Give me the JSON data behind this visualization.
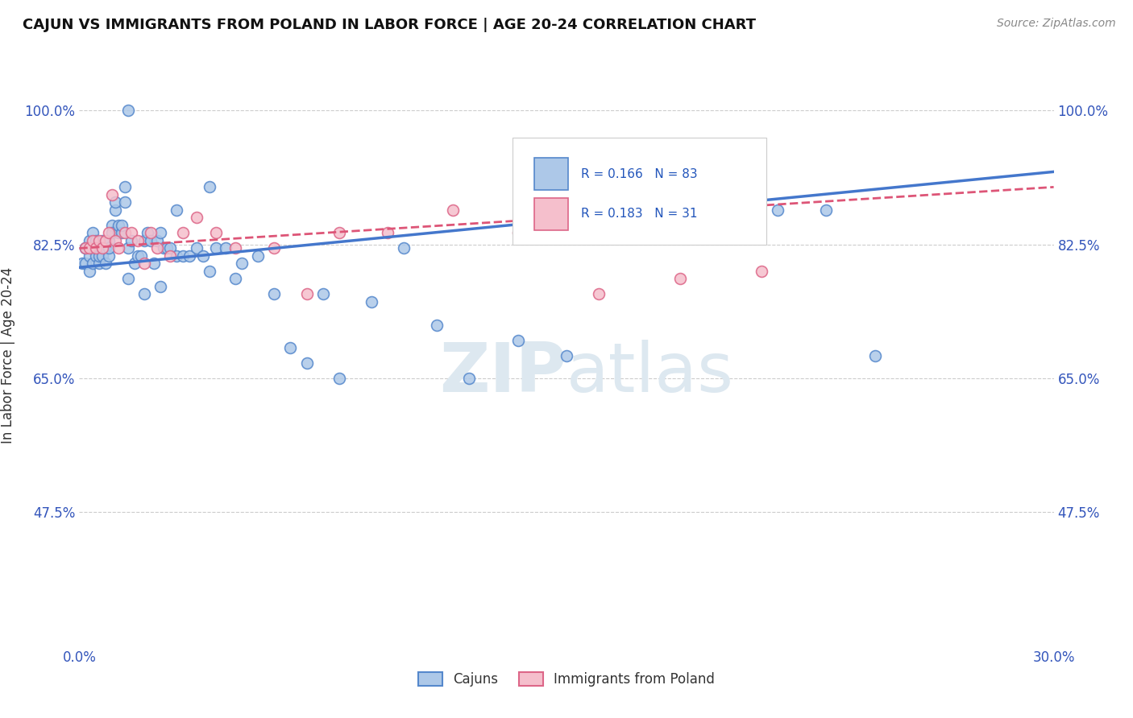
{
  "title": "CAJUN VS IMMIGRANTS FROM POLAND IN LABOR FORCE | AGE 20-24 CORRELATION CHART",
  "source": "Source: ZipAtlas.com",
  "ylabel": "In Labor Force | Age 20-24",
  "xlim": [
    0.0,
    0.3
  ],
  "ylim": [
    0.3,
    1.06
  ],
  "xticks": [
    0.0,
    0.05,
    0.1,
    0.15,
    0.2,
    0.25,
    0.3
  ],
  "xticklabels": [
    "0.0%",
    "",
    "",
    "",
    "",
    "",
    "30.0%"
  ],
  "yticks": [
    0.475,
    0.65,
    0.825,
    1.0
  ],
  "yticklabels": [
    "47.5%",
    "65.0%",
    "82.5%",
    "100.0%"
  ],
  "legend_labels": [
    "Cajuns",
    "Immigrants from Poland"
  ],
  "r_cajun": 0.166,
  "n_cajun": 83,
  "r_poland": 0.183,
  "n_poland": 31,
  "cajun_color": "#adc8e8",
  "cajun_edge_color": "#5588cc",
  "poland_color": "#f5bfcc",
  "poland_edge_color": "#dd6688",
  "trend_cajun_color": "#4477cc",
  "trend_poland_color": "#dd5577",
  "background_color": "#ffffff",
  "grid_color": "#cccccc",
  "watermark_color": "#dde8f0",
  "cajun_x": [
    0.001,
    0.002,
    0.002,
    0.002,
    0.003,
    0.003,
    0.003,
    0.004,
    0.004,
    0.004,
    0.004,
    0.005,
    0.005,
    0.005,
    0.006,
    0.006,
    0.006,
    0.007,
    0.007,
    0.007,
    0.008,
    0.008,
    0.009,
    0.009,
    0.009,
    0.01,
    0.01,
    0.011,
    0.011,
    0.012,
    0.012,
    0.013,
    0.013,
    0.014,
    0.014,
    0.015,
    0.016,
    0.017,
    0.018,
    0.019,
    0.02,
    0.021,
    0.022,
    0.023,
    0.024,
    0.025,
    0.026,
    0.027,
    0.028,
    0.03,
    0.032,
    0.034,
    0.036,
    0.038,
    0.04,
    0.042,
    0.045,
    0.048,
    0.05,
    0.055,
    0.06,
    0.065,
    0.07,
    0.075,
    0.08,
    0.09,
    0.1,
    0.11,
    0.12,
    0.135,
    0.15,
    0.17,
    0.185,
    0.2,
    0.215,
    0.23,
    0.245,
    0.03,
    0.04,
    0.015,
    0.02,
    0.025,
    0.015
  ],
  "cajun_y": [
    0.8,
    0.82,
    0.8,
    0.82,
    0.83,
    0.81,
    0.79,
    0.82,
    0.8,
    0.84,
    0.82,
    0.83,
    0.81,
    0.82,
    0.8,
    0.82,
    0.81,
    0.83,
    0.82,
    0.81,
    0.8,
    0.82,
    0.81,
    0.83,
    0.82,
    0.85,
    0.84,
    0.87,
    0.88,
    0.84,
    0.85,
    0.84,
    0.85,
    0.9,
    0.88,
    0.82,
    0.83,
    0.8,
    0.81,
    0.81,
    0.83,
    0.84,
    0.83,
    0.8,
    0.83,
    0.84,
    0.82,
    0.82,
    0.82,
    0.81,
    0.81,
    0.81,
    0.82,
    0.81,
    0.79,
    0.82,
    0.82,
    0.78,
    0.8,
    0.81,
    0.76,
    0.69,
    0.67,
    0.76,
    0.65,
    0.75,
    0.82,
    0.72,
    0.65,
    0.7,
    0.68,
    0.86,
    0.9,
    0.87,
    0.87,
    0.87,
    0.68,
    0.87,
    0.9,
    0.78,
    0.76,
    0.77,
    1.0
  ],
  "poland_x": [
    0.002,
    0.003,
    0.004,
    0.005,
    0.006,
    0.007,
    0.008,
    0.009,
    0.01,
    0.011,
    0.012,
    0.014,
    0.016,
    0.018,
    0.02,
    0.022,
    0.024,
    0.028,
    0.032,
    0.036,
    0.042,
    0.048,
    0.06,
    0.07,
    0.08,
    0.095,
    0.115,
    0.135,
    0.16,
    0.185,
    0.21
  ],
  "poland_y": [
    0.82,
    0.82,
    0.83,
    0.82,
    0.83,
    0.82,
    0.83,
    0.84,
    0.89,
    0.83,
    0.82,
    0.84,
    0.84,
    0.83,
    0.8,
    0.84,
    0.82,
    0.81,
    0.84,
    0.86,
    0.84,
    0.82,
    0.82,
    0.76,
    0.84,
    0.84,
    0.87,
    0.84,
    0.76,
    0.78,
    0.79
  ]
}
